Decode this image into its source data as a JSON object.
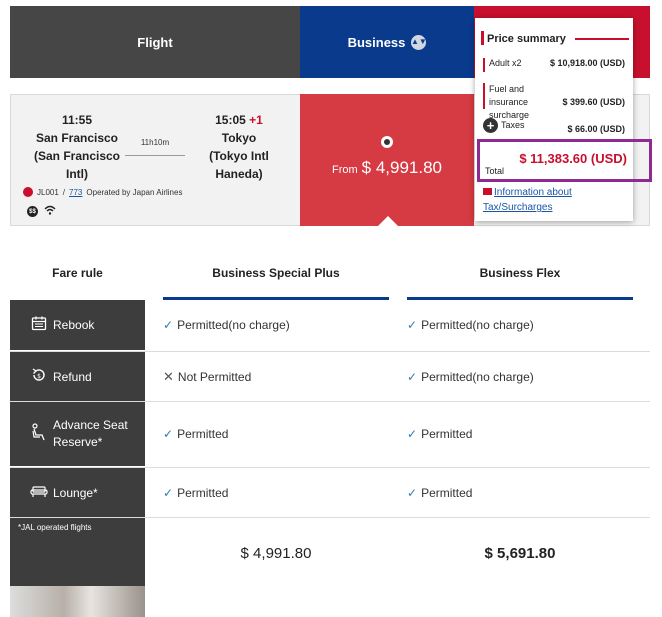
{
  "tabs": {
    "flight": "Flight",
    "business": "Business"
  },
  "flight": {
    "dep_time": "11:55",
    "dep_city": "San Francisco",
    "dep_airport": "(San Francisco Intl)",
    "arr_time": "15:05",
    "arr_day_offset": "+1",
    "arr_city": "Tokyo",
    "arr_airport": "(Tokyo Intl Haneda)",
    "duration": "11h10m",
    "flight_no": "JL001",
    "aircraft_link": "773",
    "operated_by": "Operated by Japan Airlines"
  },
  "fare_cell": {
    "from_label": "From",
    "price": "$ 4,991.80"
  },
  "price_summary": {
    "title": "Price summary",
    "adult_label": "Adult x2",
    "adult_value": "$ 10,918.00 (USD)",
    "fuel_label": "Fuel and insurance surcharge",
    "fuel_value": "$ 399.60 (USD)",
    "taxes_label": "Taxes",
    "taxes_value": "$ 66.00 (USD)",
    "total_label": "Total",
    "total_value": "$ 11,383.60 (USD)",
    "info_link": "Information about Tax/Surcharges"
  },
  "compare": {
    "fare_rule_header": "Fare rule",
    "col1_header": "Business Special Plus",
    "col2_header": "Business Flex",
    "rows": [
      {
        "label": "Rebook",
        "icon": "calendar-icon",
        "col1": "Permitted(no charge)",
        "col1_ok": true,
        "col2": "Permitted(no charge)",
        "col2_ok": true
      },
      {
        "label": "Refund",
        "icon": "refund-icon",
        "col1": "Not Permitted",
        "col1_ok": false,
        "col2": "Permitted(no charge)",
        "col2_ok": true
      },
      {
        "label": "Advance Seat Reserve*",
        "icon": "seat-icon",
        "col1": "Permitted",
        "col1_ok": true,
        "col2": "Permitted",
        "col2_ok": true
      },
      {
        "label": "Lounge*",
        "icon": "sofa-icon",
        "col1": "Permitted",
        "col1_ok": true,
        "col2": "Permitted",
        "col2_ok": true
      }
    ],
    "footnote": "*JAL operated flights",
    "col1_price": "$ 4,991.80",
    "col2_price": "$ 5,691.80"
  },
  "colors": {
    "business_blue": "#0a3a8c",
    "jal_red": "#c8102e",
    "highlight_purple": "#8e2a91"
  }
}
